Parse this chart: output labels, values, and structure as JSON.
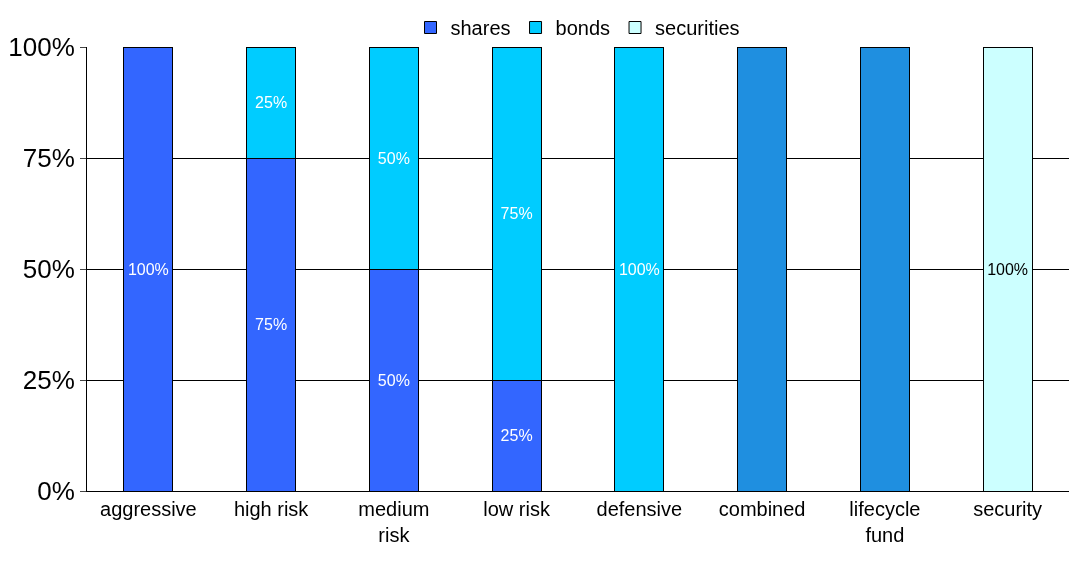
{
  "chart_data": {
    "type": "bar",
    "stacked": true,
    "categories": [
      "aggressive",
      "high risk",
      "medium\nrisk",
      "low risk",
      "defensive",
      "combined",
      "lifecycle\nfund",
      "security"
    ],
    "ylim": [
      0,
      100
    ],
    "yticks": [
      {
        "value": 0,
        "label": "0%"
      },
      {
        "value": 25,
        "label": "25%"
      },
      {
        "value": 50,
        "label": "50%"
      },
      {
        "value": 75,
        "label": "75%"
      },
      {
        "value": 100,
        "label": "100%"
      }
    ],
    "grid": "y",
    "legend": "top",
    "series": [
      {
        "name": "shares",
        "color": "#3366ff",
        "values": [
          100,
          75,
          50,
          25,
          null,
          null,
          null,
          null
        ],
        "value_labels": [
          "100%",
          "75%",
          "50%",
          "25%",
          null,
          null,
          null,
          null
        ]
      },
      {
        "name": "bonds",
        "color": "#00ccff",
        "values": [
          null,
          25,
          50,
          75,
          100,
          null,
          null,
          null
        ],
        "value_labels": [
          null,
          "25%",
          "50%",
          "75%",
          "100%",
          null,
          null,
          null
        ]
      },
      {
        "name": "securities",
        "color": "#ccffff",
        "values": [
          null,
          null,
          null,
          null,
          null,
          null,
          null,
          100
        ],
        "value_labels": [
          null,
          null,
          null,
          null,
          null,
          null,
          null,
          "100%"
        ]
      },
      {
        "color": "#1f8fe0",
        "values": [
          null,
          null,
          null,
          null,
          null,
          100,
          100,
          null
        ]
      }
    ]
  }
}
